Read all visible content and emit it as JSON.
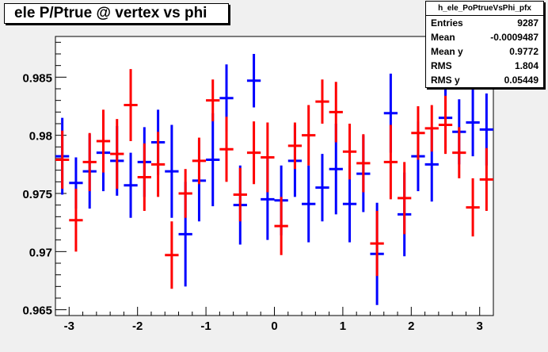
{
  "title": "ele P/Ptrue @ vertex vs phi",
  "stats": {
    "name": "h_ele_PoPtrueVsPhi_pfx",
    "rows": [
      {
        "label": "Entries",
        "value": "9287"
      },
      {
        "label": "Mean",
        "value": "-0.0009487"
      },
      {
        "label": "Mean y",
        "value": "0.9772"
      },
      {
        "label": "RMS",
        "value": "1.804"
      },
      {
        "label": "RMS y",
        "value": "0.05449"
      }
    ]
  },
  "chart_data": {
    "type": "scatter",
    "title": "ele P/Ptrue @ vertex vs phi",
    "xlabel": "",
    "ylabel": "",
    "xlim": [
      -3.2,
      3.2
    ],
    "ylim": [
      0.9645,
      0.9885
    ],
    "x_ticks": [
      -3,
      -2,
      -1,
      0,
      1,
      2,
      3
    ],
    "x_tick_labels": [
      "-3",
      "-2",
      "-1",
      "0",
      "1",
      "2",
      "3"
    ],
    "y_ticks": [
      0.965,
      0.97,
      0.975,
      0.98,
      0.985
    ],
    "y_tick_labels": [
      "0.965",
      "0.97",
      "0.975",
      "0.98",
      "0.985"
    ],
    "grid": false,
    "series": [
      {
        "color": "#0000ff",
        "points": [
          {
            "x": -3.1,
            "y": 0.9782,
            "err": 0.0033,
            "xerr": 0.1
          },
          {
            "x": -2.9,
            "y": 0.9759,
            "err": 0.0022,
            "xerr": 0.1
          },
          {
            "x": -2.7,
            "y": 0.9769,
            "err": 0.0032,
            "xerr": 0.1
          },
          {
            "x": -2.5,
            "y": 0.9785,
            "err": 0.0033,
            "xerr": 0.1
          },
          {
            "x": -2.3,
            "y": 0.9778,
            "err": 0.003,
            "xerr": 0.1
          },
          {
            "x": -2.1,
            "y": 0.9757,
            "err": 0.0028,
            "xerr": 0.1
          },
          {
            "x": -1.9,
            "y": 0.9777,
            "err": 0.003,
            "xerr": 0.1
          },
          {
            "x": -1.7,
            "y": 0.9794,
            "err": 0.0028,
            "xerr": 0.1
          },
          {
            "x": -1.5,
            "y": 0.9769,
            "err": 0.004,
            "xerr": 0.1
          },
          {
            "x": -1.3,
            "y": 0.9715,
            "err": 0.0045,
            "xerr": 0.1
          },
          {
            "x": -1.1,
            "y": 0.9761,
            "err": 0.0035,
            "xerr": 0.1
          },
          {
            "x": -0.9,
            "y": 0.9779,
            "err": 0.004,
            "xerr": 0.1
          },
          {
            "x": -0.7,
            "y": 0.9832,
            "err": 0.0029,
            "xerr": 0.1
          },
          {
            "x": -0.5,
            "y": 0.974,
            "err": 0.0034,
            "xerr": 0.1
          },
          {
            "x": -0.3,
            "y": 0.9847,
            "err": 0.0023,
            "xerr": 0.1
          },
          {
            "x": -0.1,
            "y": 0.9745,
            "err": 0.0035,
            "xerr": 0.1
          },
          {
            "x": 0.1,
            "y": 0.9744,
            "err": 0.003,
            "xerr": 0.1
          },
          {
            "x": 0.3,
            "y": 0.9778,
            "err": 0.0031,
            "xerr": 0.1
          },
          {
            "x": 0.5,
            "y": 0.9741,
            "err": 0.0033,
            "xerr": 0.1
          },
          {
            "x": 0.7,
            "y": 0.9755,
            "err": 0.0029,
            "xerr": 0.1
          },
          {
            "x": 0.9,
            "y": 0.9771,
            "err": 0.0039,
            "xerr": 0.1
          },
          {
            "x": 1.1,
            "y": 0.9741,
            "err": 0.0033,
            "xerr": 0.1
          },
          {
            "x": 1.3,
            "y": 0.9767,
            "err": 0.0033,
            "xerr": 0.1
          },
          {
            "x": 1.5,
            "y": 0.9698,
            "err": 0.0044,
            "xerr": 0.1
          },
          {
            "x": 1.7,
            "y": 0.9819,
            "err": 0.0034,
            "xerr": 0.1
          },
          {
            "x": 1.9,
            "y": 0.9732,
            "err": 0.0036,
            "xerr": 0.1
          },
          {
            "x": 2.1,
            "y": 0.9782,
            "err": 0.003,
            "xerr": 0.1
          },
          {
            "x": 2.3,
            "y": 0.9775,
            "err": 0.0032,
            "xerr": 0.1
          },
          {
            "x": 2.5,
            "y": 0.9815,
            "err": 0.0026,
            "xerr": 0.1
          },
          {
            "x": 2.7,
            "y": 0.9803,
            "err": 0.0028,
            "xerr": 0.1
          },
          {
            "x": 2.9,
            "y": 0.9811,
            "err": 0.0029,
            "xerr": 0.1
          },
          {
            "x": 3.1,
            "y": 0.9805,
            "err": 0.0031,
            "xerr": 0.1
          }
        ]
      },
      {
        "color": "#ff0000",
        "points": [
          {
            "x": -3.1,
            "y": 0.9779,
            "err": 0.0025,
            "xerr": 0.1
          },
          {
            "x": -2.9,
            "y": 0.9727,
            "err": 0.0027,
            "xerr": 0.1
          },
          {
            "x": -2.7,
            "y": 0.9777,
            "err": 0.0025,
            "xerr": 0.1
          },
          {
            "x": -2.5,
            "y": 0.9795,
            "err": 0.0027,
            "xerr": 0.1
          },
          {
            "x": -2.3,
            "y": 0.9784,
            "err": 0.003,
            "xerr": 0.1
          },
          {
            "x": -2.1,
            "y": 0.9826,
            "err": 0.0031,
            "xerr": 0.1
          },
          {
            "x": -1.9,
            "y": 0.9764,
            "err": 0.0029,
            "xerr": 0.1
          },
          {
            "x": -1.7,
            "y": 0.9775,
            "err": 0.0028,
            "xerr": 0.1
          },
          {
            "x": -1.5,
            "y": 0.9697,
            "err": 0.0029,
            "xerr": 0.1
          },
          {
            "x": -1.3,
            "y": 0.975,
            "err": 0.0021,
            "xerr": 0.1
          },
          {
            "x": -1.1,
            "y": 0.9778,
            "err": 0.002,
            "xerr": 0.1
          },
          {
            "x": -0.9,
            "y": 0.983,
            "err": 0.0018,
            "xerr": 0.1
          },
          {
            "x": -0.7,
            "y": 0.9788,
            "err": 0.0028,
            "xerr": 0.1
          },
          {
            "x": -0.5,
            "y": 0.9749,
            "err": 0.0023,
            "xerr": 0.1
          },
          {
            "x": -0.3,
            "y": 0.9785,
            "err": 0.0027,
            "xerr": 0.1
          },
          {
            "x": -0.1,
            "y": 0.9781,
            "err": 0.003,
            "xerr": 0.1
          },
          {
            "x": 0.1,
            "y": 0.9722,
            "err": 0.0025,
            "xerr": 0.1
          },
          {
            "x": 0.3,
            "y": 0.9791,
            "err": 0.002,
            "xerr": 0.1
          },
          {
            "x": 0.5,
            "y": 0.98,
            "err": 0.0026,
            "xerr": 0.1
          },
          {
            "x": 0.7,
            "y": 0.9829,
            "err": 0.0019,
            "xerr": 0.1
          },
          {
            "x": 0.9,
            "y": 0.982,
            "err": 0.0026,
            "xerr": 0.1
          },
          {
            "x": 1.1,
            "y": 0.9786,
            "err": 0.0024,
            "xerr": 0.1
          },
          {
            "x": 1.3,
            "y": 0.9776,
            "err": 0.0025,
            "xerr": 0.1
          },
          {
            "x": 1.5,
            "y": 0.9707,
            "err": 0.0028,
            "xerr": 0.1
          },
          {
            "x": 1.7,
            "y": 0.9777,
            "err": 0.0032,
            "xerr": 0.1
          },
          {
            "x": 1.9,
            "y": 0.9746,
            "err": 0.0031,
            "xerr": 0.1
          },
          {
            "x": 2.1,
            "y": 0.9802,
            "err": 0.0023,
            "xerr": 0.1
          },
          {
            "x": 2.3,
            "y": 0.9806,
            "err": 0.002,
            "xerr": 0.1
          },
          {
            "x": 2.5,
            "y": 0.9809,
            "err": 0.0025,
            "xerr": 0.1
          },
          {
            "x": 2.7,
            "y": 0.9785,
            "err": 0.0022,
            "xerr": 0.1
          },
          {
            "x": 2.9,
            "y": 0.9738,
            "err": 0.0025,
            "xerr": 0.1
          },
          {
            "x": 3.1,
            "y": 0.9762,
            "err": 0.0027,
            "xerr": 0.1
          }
        ]
      }
    ]
  },
  "colors": {
    "background": "#f0f0f0",
    "frame": "#ffffff",
    "series_1": "#0000ff",
    "series_2": "#ff0000"
  }
}
